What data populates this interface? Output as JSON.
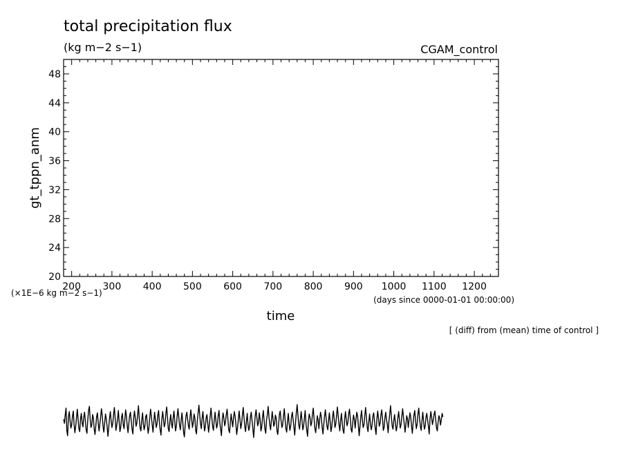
{
  "chart_data": {
    "type": "line",
    "title": "total precipitation flux",
    "units": "(kg m−2 s−1)",
    "run_label": "CGAM_control",
    "xlabel": "time",
    "x_units": "(days since 0000-01-01 00:00:00)",
    "ylabel": "gt_tppn_anm",
    "y_scale_note": "(×1E−6 kg m−2 s−1)",
    "diff_note": "[ (diff) from (mean) time of control ]",
    "xlim": [
      180,
      1260
    ],
    "ylim": [
      20,
      50
    ],
    "x_ticks": [
      200,
      300,
      400,
      500,
      600,
      700,
      800,
      900,
      1000,
      1100,
      1200
    ],
    "y_ticks": [
      20,
      24,
      28,
      32,
      36,
      40,
      44,
      48
    ],
    "series": [
      {
        "x_start": 180,
        "x_step": 2,
        "values": [
          0.4,
          -0.3,
          1.1,
          2.3,
          -1.6,
          -2.4,
          0.8,
          1.7,
          0.2,
          -1.1,
          -0.6,
          0.9,
          1.8,
          -0.4,
          -1.9,
          -0.8,
          0.6,
          2.1,
          0.3,
          -1.2,
          -1.7,
          0.5,
          1.4,
          -0.2,
          -0.9,
          0.7,
          1.6,
          0.1,
          -1.4,
          -2.0,
          0.2,
          1.9,
          2.6,
          0.4,
          -1.0,
          -0.5,
          1.2,
          0.6,
          -1.3,
          -2.2,
          -0.7,
          0.9,
          1.5,
          -0.3,
          -1.6,
          -0.4,
          0.8,
          2.2,
          1.0,
          -0.9,
          -1.8,
          -0.2,
          1.3,
          0.5,
          -0.8,
          -2.5,
          -1.1,
          0.6,
          1.7,
          0.2,
          -1.0,
          -0.3,
          1.1,
          2.4,
          0.7,
          -1.5,
          -0.6,
          0.4,
          1.9,
          -0.1,
          -1.7,
          -0.9,
          0.8,
          1.4,
          -0.5,
          -1.2,
          0.3,
          2.0,
          0.9,
          -0.7,
          -1.9,
          -0.4,
          1.0,
          1.6,
          0.1,
          -1.3,
          -2.1,
          0.5,
          1.8,
          0.6,
          -0.8,
          -0.2,
          1.3,
          2.7,
          0.4,
          -1.1,
          -1.6,
          0.2,
          1.5,
          -0.3,
          -1.4,
          -0.7,
          0.9,
          1.2,
          -0.6,
          -2.0,
          -0.9,
          0.7,
          2.1,
          0.8,
          -0.5,
          -1.8,
          0.0,
          1.6,
          0.3,
          -1.0,
          -0.4,
          1.1,
          1.9,
          -0.2,
          -1.5,
          -2.3,
          0.4,
          1.7,
          0.5,
          -0.9,
          -0.3,
          1.4,
          2.5,
          0.6,
          -1.2,
          -1.7,
          0.1,
          1.2,
          -0.4,
          -1.1,
          0.6,
          1.8,
          0.2,
          -1.6,
          -0.8,
          0.9,
          2.2,
          0.7,
          -0.6,
          -1.4,
          0.3,
          1.5,
          -0.1,
          -1.9,
          -2.6,
          -0.5,
          1.0,
          1.6,
          0.4,
          -0.7,
          -1.3,
          0.8,
          2.0,
          0.5,
          -1.0,
          -0.2,
          1.3,
          0.6,
          -1.5,
          -2.1,
          0.2,
          1.4,
          2.8,
          1.1,
          -0.4,
          -1.2,
          0.5,
          1.7,
          0.0,
          -1.6,
          -0.9,
          0.7,
          1.2,
          -0.3,
          -1.8,
          -0.6,
          0.9,
          2.3,
          0.8,
          -0.8,
          -1.5,
          0.1,
          1.6,
          0.4,
          -1.1,
          -0.5,
          1.0,
          1.9,
          -0.2,
          -1.3,
          -2.4,
          0.3,
          1.5,
          0.6,
          -0.7,
          -0.1,
          1.2,
          2.1,
          0.5,
          -1.4,
          -1.9,
          -0.3,
          1.3,
          0.2,
          -0.9,
          0.6,
          1.7,
          0.9,
          -0.6,
          -2.2,
          -1.0,
          0.5,
          1.8,
          0.3,
          -1.2,
          -0.4,
          1.1,
          2.4,
          0.7,
          -0.9,
          -1.7,
          0.0,
          1.4,
          -0.5,
          -1.5,
          -0.8,
          0.8,
          1.6,
          0.1,
          -1.1,
          -2.7,
          -0.6,
          1.0,
          2.0,
          0.6,
          -0.7,
          -0.2,
          1.5,
          0.4,
          -1.6,
          -1.0,
          0.7,
          1.9,
          0.2,
          -1.3,
          -2.0,
          0.3,
          1.2,
          2.6,
          0.8,
          -0.5,
          -1.4,
          0.1,
          1.7,
          0.5,
          -0.8,
          -0.3,
          1.1,
          0.6,
          -1.7,
          -2.2,
          -0.4,
          1.3,
          1.8,
          0.2,
          -1.0,
          -0.6,
          0.9,
          2.2,
          0.4,
          -1.2,
          -1.8,
          0.0,
          1.4,
          -0.2,
          -1.5,
          -0.7,
          0.8,
          1.6,
          0.3,
          -0.9,
          -2.3,
          -0.1,
          1.5,
          2.9,
          1.0,
          -0.6,
          -1.3,
          0.4,
          1.7,
          0.2,
          -1.4,
          -0.8,
          0.6,
          1.9,
          -0.3,
          -1.6,
          -2.5,
          0.2,
          1.3,
          0.7,
          -0.7,
          -0.2,
          1.2,
          2.3,
          0.5,
          -1.1,
          -1.9,
          -0.5,
          1.0,
          0.3,
          -1.2,
          0.4,
          1.6,
          0.8,
          -0.9,
          -2.1,
          -0.6,
          0.9,
          2.0,
          0.6,
          -0.8,
          -1.4,
          0.1,
          1.5,
          -0.1,
          -1.7,
          -0.9,
          0.7,
          1.8,
          0.4,
          -1.0,
          -0.4,
          1.2,
          2.5,
          0.9,
          -0.5,
          -1.6,
          0.2,
          1.4,
          -0.3,
          -1.5,
          -2.0,
          0.5,
          1.7,
          0.3,
          -0.7,
          -0.1,
          1.3,
          2.1,
          0.6,
          -1.3,
          -1.8,
          -0.2,
          1.1,
          0.4,
          -1.1,
          0.3,
          1.6,
          1.0,
          -0.6,
          -2.4,
          -0.8,
          0.8,
          1.9,
          0.2,
          -1.0,
          -0.5,
          1.0,
          2.4,
          0.7,
          -0.9,
          -1.7,
          0.0,
          1.3,
          -0.4,
          -1.4,
          -0.7,
          0.9,
          1.5,
          0.1,
          -1.2,
          -2.2,
          0.4,
          1.8,
          0.6,
          -0.8,
          -0.3,
          1.1,
          2.0,
          0.5,
          -1.5,
          -1.0,
          0.7,
          1.6,
          0.3,
          -0.6,
          -1.9,
          0.1,
          1.4,
          2.7,
          0.8,
          -0.7,
          -1.3,
          0.2,
          1.2,
          -0.2,
          -1.6,
          -0.9,
          0.6,
          1.7,
          0.4,
          -1.1,
          -0.5,
          0.9,
          2.2,
          0.7,
          -0.4,
          -1.8,
          -0.6,
          1.0,
          0.5,
          -1.0,
          0.3,
          1.5,
          0.9,
          -0.7,
          -2.0,
          -0.3,
          1.1,
          1.9,
          0.2,
          -1.2,
          -0.4,
          1.3,
          2.3,
          0.6,
          -0.8,
          -1.5,
          0.1,
          1.6,
          0.0,
          -1.3,
          -0.8,
          0.8,
          1.4,
          0.3,
          -0.9,
          -2.1,
          0.5,
          1.7,
          0.7,
          -0.5,
          0.2,
          1.2,
          1.8,
          0.4,
          -1.0,
          -1.6,
          -0.2,
          1.0,
          0.6,
          -0.6,
          0.3,
          1.4,
          0.8
        ]
      }
    ]
  }
}
